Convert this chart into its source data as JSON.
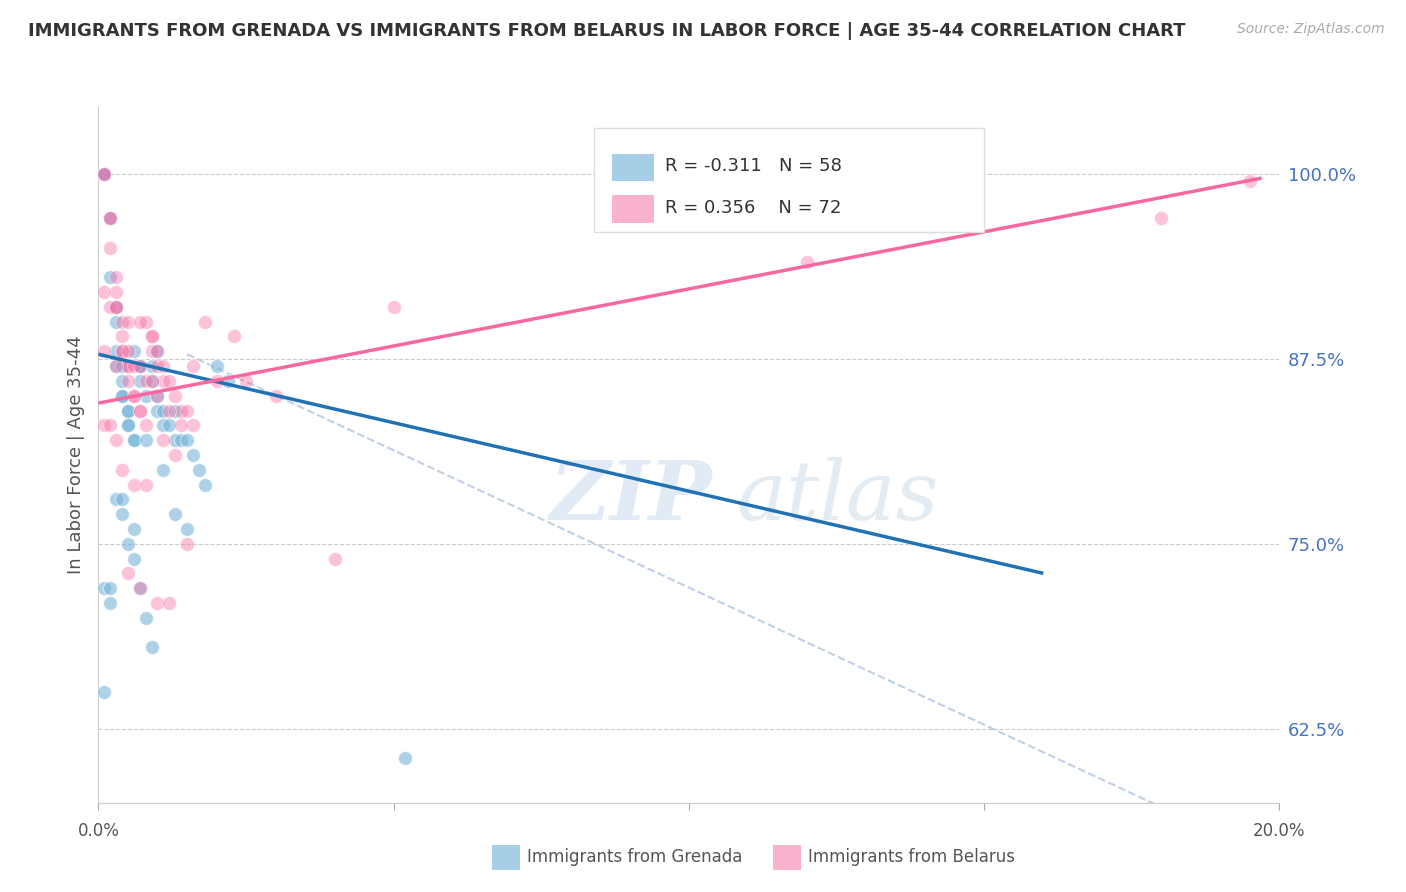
{
  "title": "IMMIGRANTS FROM GRENADA VS IMMIGRANTS FROM BELARUS IN LABOR FORCE | AGE 35-44 CORRELATION CHART",
  "source": "Source: ZipAtlas.com",
  "ylabel": "In Labor Force | Age 35-44",
  "ytick_labels": [
    "62.5%",
    "75.0%",
    "87.5%",
    "100.0%"
  ],
  "ytick_values": [
    0.625,
    0.75,
    0.875,
    1.0
  ],
  "xlim": [
    0.0,
    0.2
  ],
  "ylim": [
    0.575,
    1.045
  ],
  "label_blue": "Immigrants from Grenada",
  "label_pink": "Immigrants from Belarus",
  "color_blue": "#6baed6",
  "color_pink": "#f768a1",
  "color_blue_line": "#2171b5",
  "color_pink_line": "#f768a1",
  "color_dashed": "#b0c4de",
  "blue_scatter_x": [
    0.001,
    0.001,
    0.002,
    0.002,
    0.003,
    0.003,
    0.003,
    0.003,
    0.004,
    0.004,
    0.004,
    0.004,
    0.005,
    0.005,
    0.005,
    0.005,
    0.006,
    0.006,
    0.006,
    0.007,
    0.007,
    0.007,
    0.008,
    0.008,
    0.009,
    0.009,
    0.01,
    0.01,
    0.011,
    0.011,
    0.012,
    0.013,
    0.013,
    0.014,
    0.015,
    0.016,
    0.017,
    0.018,
    0.02,
    0.022,
    0.001,
    0.002,
    0.003,
    0.004,
    0.005,
    0.006,
    0.007,
    0.008,
    0.009,
    0.011,
    0.013,
    0.015,
    0.052,
    0.001,
    0.002,
    0.004,
    0.006,
    0.01
  ],
  "blue_scatter_y": [
    1.0,
    1.0,
    0.97,
    0.93,
    0.91,
    0.9,
    0.88,
    0.87,
    0.87,
    0.86,
    0.85,
    0.85,
    0.84,
    0.84,
    0.83,
    0.83,
    0.82,
    0.82,
    0.88,
    0.87,
    0.87,
    0.86,
    0.85,
    0.82,
    0.87,
    0.86,
    0.85,
    0.84,
    0.84,
    0.83,
    0.83,
    0.82,
    0.84,
    0.82,
    0.82,
    0.81,
    0.8,
    0.79,
    0.87,
    0.86,
    0.72,
    0.71,
    0.78,
    0.77,
    0.75,
    0.74,
    0.72,
    0.7,
    0.68,
    0.8,
    0.77,
    0.76,
    0.605,
    0.65,
    0.72,
    0.78,
    0.76,
    0.88
  ],
  "pink_scatter_x": [
    0.001,
    0.001,
    0.002,
    0.002,
    0.003,
    0.003,
    0.003,
    0.004,
    0.004,
    0.004,
    0.005,
    0.005,
    0.005,
    0.006,
    0.006,
    0.007,
    0.007,
    0.008,
    0.008,
    0.009,
    0.009,
    0.01,
    0.01,
    0.011,
    0.011,
    0.012,
    0.013,
    0.014,
    0.015,
    0.016,
    0.001,
    0.002,
    0.003,
    0.004,
    0.005,
    0.006,
    0.007,
    0.008,
    0.009,
    0.01,
    0.012,
    0.014,
    0.016,
    0.02,
    0.025,
    0.03,
    0.001,
    0.002,
    0.003,
    0.005,
    0.007,
    0.009,
    0.011,
    0.013,
    0.002,
    0.004,
    0.006,
    0.008,
    0.015,
    0.04,
    0.001,
    0.003,
    0.005,
    0.007,
    0.01,
    0.012,
    0.018,
    0.023,
    0.05,
    0.12,
    0.18,
    0.195
  ],
  "pink_scatter_y": [
    1.0,
    1.0,
    0.97,
    0.95,
    0.93,
    0.92,
    0.91,
    0.9,
    0.89,
    0.88,
    0.87,
    0.87,
    0.86,
    0.85,
    0.85,
    0.84,
    0.84,
    0.83,
    0.9,
    0.89,
    0.88,
    0.88,
    0.87,
    0.87,
    0.86,
    0.86,
    0.85,
    0.84,
    0.84,
    0.83,
    0.83,
    0.83,
    0.82,
    0.88,
    0.88,
    0.87,
    0.87,
    0.86,
    0.86,
    0.85,
    0.84,
    0.83,
    0.87,
    0.86,
    0.86,
    0.85,
    0.92,
    0.91,
    0.91,
    0.9,
    0.9,
    0.89,
    0.82,
    0.81,
    0.97,
    0.8,
    0.79,
    0.79,
    0.75,
    0.74,
    0.88,
    0.87,
    0.73,
    0.72,
    0.71,
    0.71,
    0.9,
    0.89,
    0.91,
    0.94,
    0.97,
    0.995
  ],
  "blue_line_x": [
    0.0,
    0.16
  ],
  "blue_line_y": [
    0.878,
    0.73
  ],
  "pink_line_x": [
    0.0,
    0.197
  ],
  "pink_line_y": [
    0.845,
    0.997
  ],
  "dashed_line_x": [
    0.015,
    0.2
  ],
  "dashed_line_y": [
    0.878,
    0.535
  ]
}
